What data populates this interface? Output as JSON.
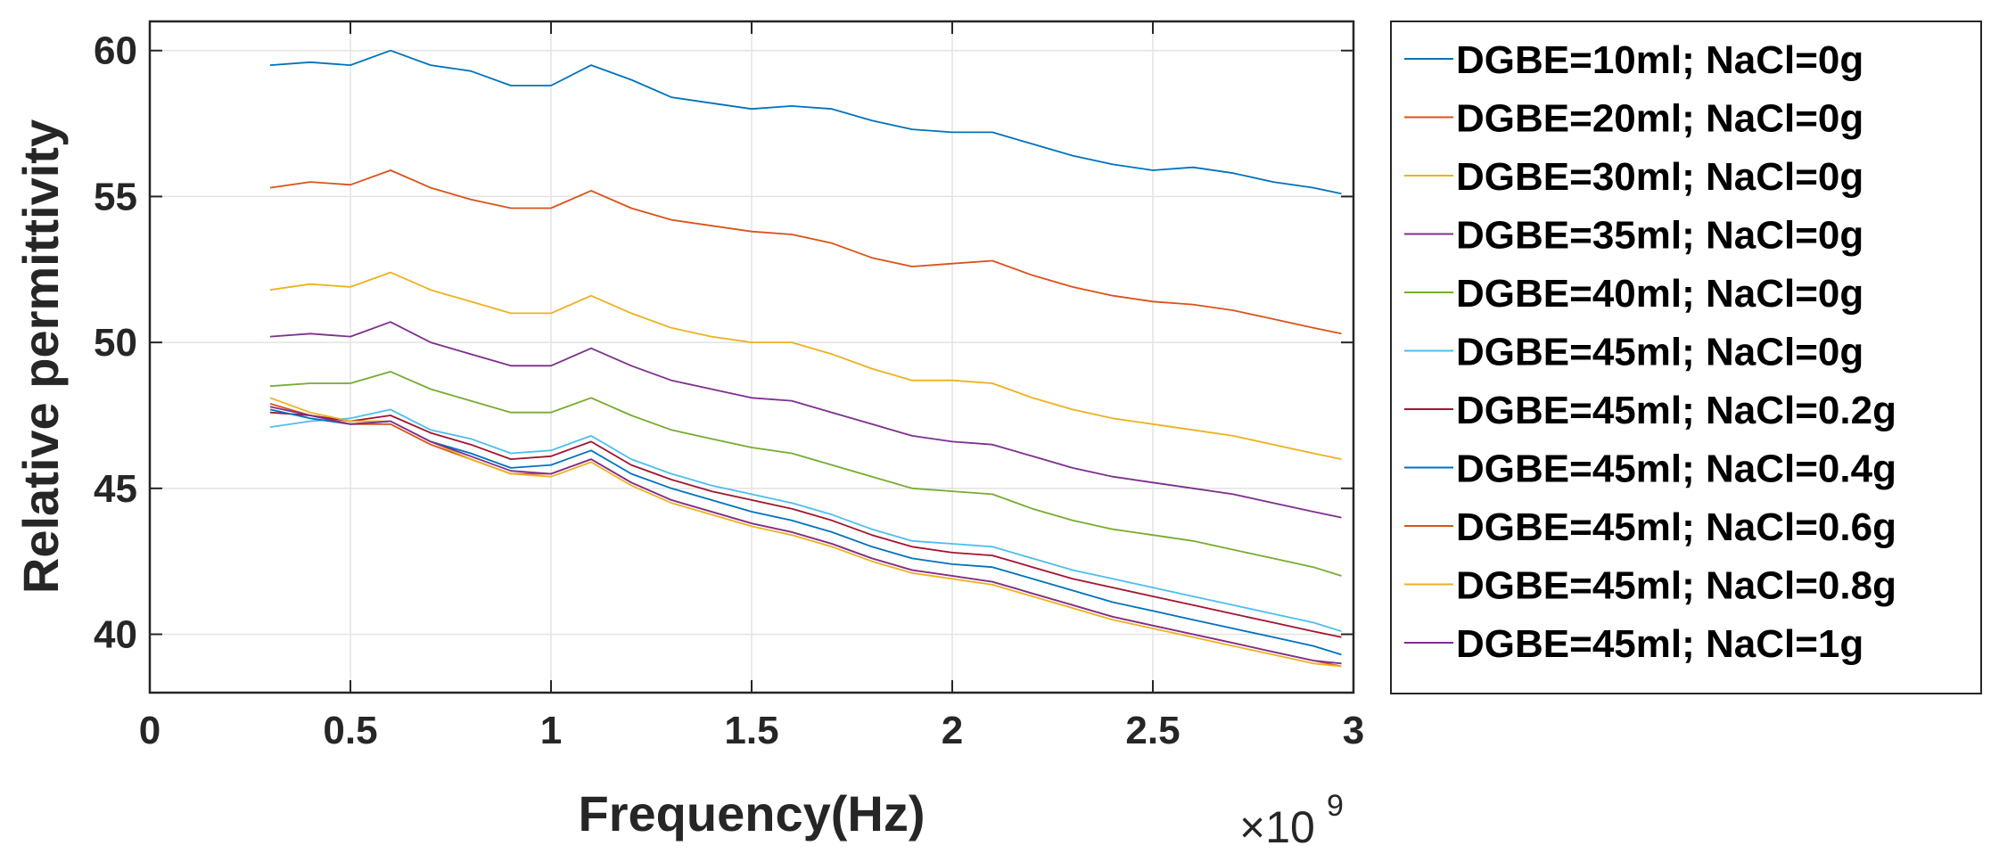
{
  "chart_data": {
    "type": "line",
    "xlabel": "Frequency(Hz)",
    "ylabel": "Relative permittivity",
    "x_multiplier_base": "×10",
    "x_multiplier_exp": "9",
    "xlim": [
      0,
      3
    ],
    "ylim": [
      38,
      61
    ],
    "xticks": [
      0,
      0.5,
      1,
      1.5,
      2,
      2.5,
      3
    ],
    "xtick_labels": [
      "0",
      "0.5",
      "1",
      "1.5",
      "2",
      "2.5",
      "3"
    ],
    "yticks": [
      40,
      45,
      50,
      55,
      60
    ],
    "ytick_labels": [
      "40",
      "45",
      "50",
      "55",
      "60"
    ],
    "grid": true,
    "legend_position": "outside-right",
    "x": [
      0.3,
      0.4,
      0.5,
      0.6,
      0.7,
      0.8,
      0.9,
      1.0,
      1.1,
      1.2,
      1.3,
      1.4,
      1.5,
      1.6,
      1.7,
      1.8,
      1.9,
      2.0,
      2.1,
      2.2,
      2.3,
      2.4,
      2.5,
      2.6,
      2.7,
      2.8,
      2.9,
      2.97
    ],
    "series": [
      {
        "name": "DGBE=10ml; NaCl=0g",
        "color": "#0072BD",
        "values": [
          59.5,
          59.6,
          59.5,
          60.0,
          59.5,
          59.3,
          58.8,
          58.8,
          59.5,
          59.0,
          58.4,
          58.2,
          58.0,
          58.1,
          58.0,
          57.6,
          57.3,
          57.2,
          57.2,
          56.8,
          56.4,
          56.1,
          55.9,
          56.0,
          55.8,
          55.5,
          55.3,
          55.1
        ]
      },
      {
        "name": "DGBE=20ml; NaCl=0g",
        "color": "#D95319",
        "values": [
          55.3,
          55.5,
          55.4,
          55.9,
          55.3,
          54.9,
          54.6,
          54.6,
          55.2,
          54.6,
          54.2,
          54.0,
          53.8,
          53.7,
          53.4,
          52.9,
          52.6,
          52.7,
          52.8,
          52.3,
          51.9,
          51.6,
          51.4,
          51.3,
          51.1,
          50.8,
          50.5,
          50.3
        ]
      },
      {
        "name": "DGBE=30ml; NaCl=0g",
        "color": "#EDB120",
        "values": [
          51.8,
          52.0,
          51.9,
          52.4,
          51.8,
          51.4,
          51.0,
          51.0,
          51.6,
          51.0,
          50.5,
          50.2,
          50.0,
          50.0,
          49.6,
          49.1,
          48.7,
          48.7,
          48.6,
          48.1,
          47.7,
          47.4,
          47.2,
          47.0,
          46.8,
          46.5,
          46.2,
          46.0
        ]
      },
      {
        "name": "DGBE=35ml; NaCl=0g",
        "color": "#7E2F8E",
        "values": [
          50.2,
          50.3,
          50.2,
          50.7,
          50.0,
          49.6,
          49.2,
          49.2,
          49.8,
          49.2,
          48.7,
          48.4,
          48.1,
          48.0,
          47.6,
          47.2,
          46.8,
          46.6,
          46.5,
          46.1,
          45.7,
          45.4,
          45.2,
          45.0,
          44.8,
          44.5,
          44.2,
          44.0
        ]
      },
      {
        "name": "DGBE=40ml; NaCl=0g",
        "color": "#77AC30",
        "values": [
          48.5,
          48.6,
          48.6,
          49.0,
          48.4,
          48.0,
          47.6,
          47.6,
          48.1,
          47.5,
          47.0,
          46.7,
          46.4,
          46.2,
          45.8,
          45.4,
          45.0,
          44.9,
          44.8,
          44.3,
          43.9,
          43.6,
          43.4,
          43.2,
          42.9,
          42.6,
          42.3,
          42.0
        ]
      },
      {
        "name": "DGBE=45ml; NaCl=0g",
        "color": "#4DBEEE",
        "values": [
          47.1,
          47.3,
          47.4,
          47.7,
          47.0,
          46.7,
          46.2,
          46.3,
          46.8,
          46.0,
          45.5,
          45.1,
          44.8,
          44.5,
          44.1,
          43.6,
          43.2,
          43.1,
          43.0,
          42.6,
          42.2,
          41.9,
          41.6,
          41.3,
          41.0,
          40.7,
          40.4,
          40.1
        ]
      },
      {
        "name": "DGBE=45ml; NaCl=0.2g",
        "color": "#A2142F",
        "values": [
          47.6,
          47.5,
          47.3,
          47.5,
          46.9,
          46.5,
          46.0,
          46.1,
          46.6,
          45.8,
          45.3,
          44.9,
          44.6,
          44.3,
          43.9,
          43.4,
          43.0,
          42.8,
          42.7,
          42.3,
          41.9,
          41.6,
          41.3,
          41.0,
          40.7,
          40.4,
          40.1,
          39.9
        ]
      },
      {
        "name": "DGBE=45ml; NaCl=0.4g",
        "color": "#0072BD",
        "values": [
          47.7,
          47.4,
          47.2,
          47.3,
          46.6,
          46.2,
          45.7,
          45.8,
          46.3,
          45.5,
          45.0,
          44.6,
          44.2,
          43.9,
          43.5,
          43.0,
          42.6,
          42.4,
          42.3,
          41.9,
          41.5,
          41.1,
          40.8,
          40.5,
          40.2,
          39.9,
          39.6,
          39.3
        ]
      },
      {
        "name": "DGBE=45ml; NaCl=0.6g",
        "color": "#D95319",
        "values": [
          47.9,
          47.5,
          47.2,
          47.2,
          46.5,
          46.0,
          45.5,
          45.5,
          46.0,
          45.2,
          44.6,
          44.2,
          43.8,
          43.5,
          43.1,
          42.6,
          42.2,
          42.0,
          41.8,
          41.4,
          41.0,
          40.6,
          40.3,
          40.0,
          39.7,
          39.4,
          39.1,
          38.9
        ]
      },
      {
        "name": "DGBE=45ml; NaCl=0.8g",
        "color": "#EDB120",
        "values": [
          48.1,
          47.6,
          47.3,
          47.3,
          46.6,
          46.0,
          45.5,
          45.4,
          45.9,
          45.1,
          44.5,
          44.1,
          43.7,
          43.4,
          43.0,
          42.5,
          42.1,
          41.9,
          41.7,
          41.3,
          40.9,
          40.5,
          40.2,
          39.9,
          39.6,
          39.3,
          39.0,
          38.9
        ]
      },
      {
        "name": "DGBE=45ml; NaCl=1g",
        "color": "#7E2F8E",
        "values": [
          47.8,
          47.5,
          47.2,
          47.3,
          46.6,
          46.1,
          45.6,
          45.5,
          46.0,
          45.2,
          44.6,
          44.2,
          43.8,
          43.5,
          43.1,
          42.6,
          42.2,
          42.0,
          41.8,
          41.4,
          41.0,
          40.6,
          40.3,
          40.0,
          39.7,
          39.4,
          39.1,
          39.0
        ]
      }
    ]
  }
}
